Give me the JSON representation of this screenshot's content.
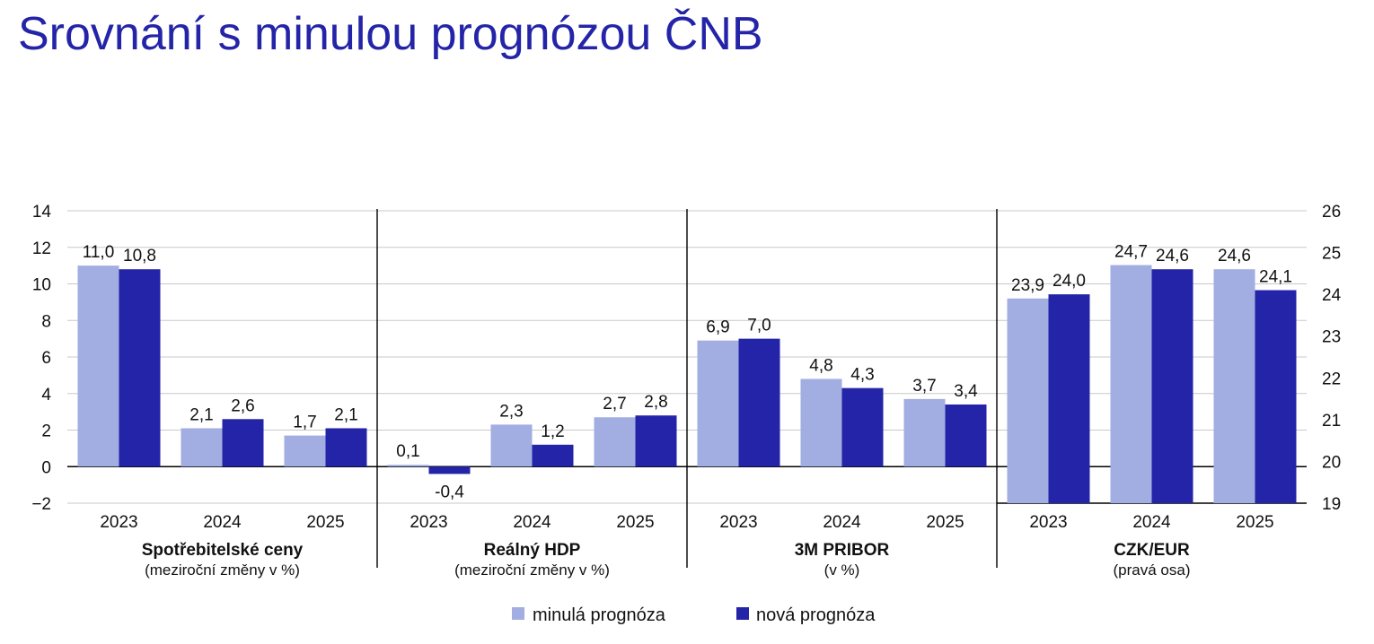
{
  "title": "Srovnání s minulou prognózou ČNB",
  "colors": {
    "old": "#a2ade2",
    "new": "#2424a8",
    "title": "#2424a8"
  },
  "legend": {
    "old_label": "minulá prognóza",
    "new_label": "nová prognóza"
  },
  "chart_data": {
    "type": "bar",
    "title": "Srovnání s minulou prognózou ČNB",
    "grid": true,
    "legend_position": "bottom",
    "left_axis": {
      "ylim": [
        -2,
        14
      ],
      "ticks": [
        -2,
        0,
        2,
        4,
        6,
        8,
        10,
        12,
        14
      ],
      "tick_labels": [
        "−2",
        "0",
        "2",
        "4",
        "6",
        "8",
        "10",
        "12",
        "14"
      ]
    },
    "right_axis": {
      "ylim": [
        19,
        26
      ],
      "ticks": [
        19,
        20,
        21,
        22,
        23,
        24,
        25,
        26
      ],
      "tick_labels": [
        "19",
        "20",
        "21",
        "22",
        "23",
        "24",
        "25",
        "26"
      ]
    },
    "series_names": [
      "minulá prognóza",
      "nová prognóza"
    ],
    "panels": [
      {
        "title": "Spotřebitelské ceny",
        "subtitle": "(meziroční změny v %)",
        "axis": "left",
        "categories": [
          "2023",
          "2024",
          "2025"
        ],
        "old": [
          11.0,
          2.1,
          1.7
        ],
        "new": [
          10.8,
          2.6,
          2.1
        ],
        "old_labels": [
          "11,0",
          "2,1",
          "1,7"
        ],
        "new_labels": [
          "10,8",
          "2,6",
          "2,1"
        ]
      },
      {
        "title": "Reálný HDP",
        "subtitle": "(meziroční změny v %)",
        "axis": "left",
        "categories": [
          "2023",
          "2024",
          "2025"
        ],
        "old": [
          0.1,
          2.3,
          2.7
        ],
        "new": [
          -0.4,
          1.2,
          2.8
        ],
        "old_labels": [
          "0,1",
          "2,3",
          "2,7"
        ],
        "new_labels": [
          "-0,4",
          "1,2",
          "2,8"
        ]
      },
      {
        "title": "3M PRIBOR",
        "subtitle": "(v %)",
        "axis": "left",
        "categories": [
          "2023",
          "2024",
          "2025"
        ],
        "old": [
          6.9,
          4.8,
          3.7
        ],
        "new": [
          7.0,
          4.3,
          3.4
        ],
        "old_labels": [
          "6,9",
          "4,8",
          "3,7"
        ],
        "new_labels": [
          "7,0",
          "4,3",
          "3,4"
        ]
      },
      {
        "title": "CZK/EUR",
        "subtitle": "(pravá osa)",
        "axis": "right",
        "categories": [
          "2023",
          "2024",
          "2025"
        ],
        "old": [
          23.9,
          24.7,
          24.6
        ],
        "new": [
          24.0,
          24.6,
          24.1
        ],
        "old_labels": [
          "23,9",
          "24,7",
          "24,6"
        ],
        "new_labels": [
          "24,0",
          "24,6",
          "24,1"
        ]
      }
    ]
  }
}
